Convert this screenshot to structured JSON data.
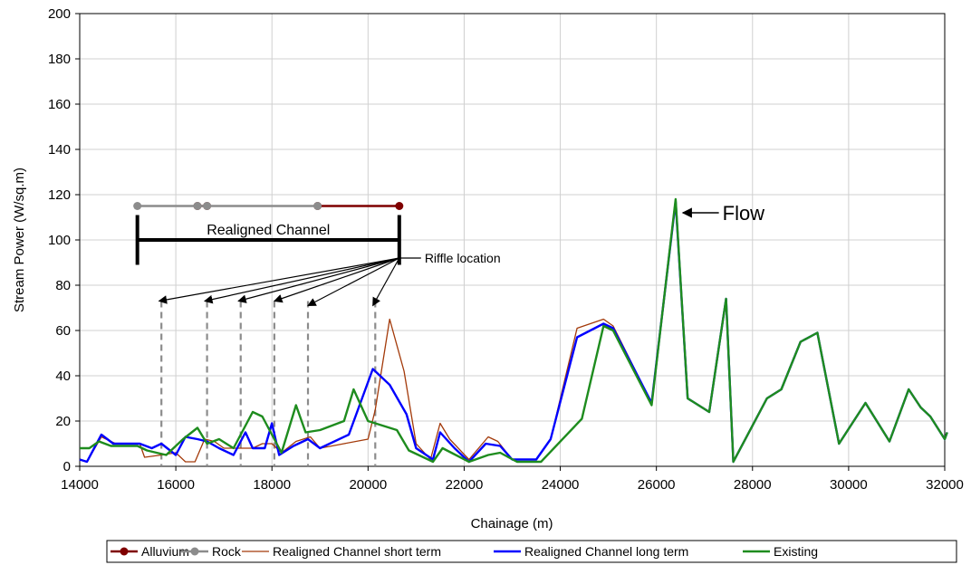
{
  "chart_data": {
    "type": "line",
    "xlabel": "Chainage (m)",
    "ylabel": "Stream Power (W/sq.m)",
    "xlim": [
      14000,
      32000
    ],
    "ylim": [
      0,
      200
    ],
    "x_ticks": [
      "14000",
      "16000",
      "18000",
      "20000",
      "22000",
      "24000",
      "26000",
      "28000",
      "30000",
      "32000"
    ],
    "y_ticks": [
      "0",
      "20",
      "40",
      "60",
      "80",
      "100",
      "120",
      "140",
      "160",
      "180",
      "200"
    ],
    "grid": true,
    "legend_position": "bottom",
    "series": [
      {
        "name": "Alluvium",
        "color": "#7f0000",
        "marker": true,
        "points": [
          [
            16450,
            115
          ],
          [
            16650,
            115
          ],
          [
            18950,
            115
          ],
          [
            20650,
            115
          ]
        ],
        "segments": [
          [
            0,
            1
          ],
          [
            2,
            3
          ]
        ]
      },
      {
        "name": "Rock",
        "color": "#8c8c8c",
        "marker": true,
        "points": [
          [
            15200,
            115
          ],
          [
            16450,
            115
          ],
          [
            16650,
            115
          ],
          [
            18950,
            115
          ]
        ],
        "segments": [
          [
            0,
            3
          ]
        ]
      },
      {
        "name": "Realigned Channel short term",
        "color": "#a33a0a",
        "width": 1.3,
        "points": [
          [
            14000,
            3
          ],
          [
            14150,
            2
          ],
          [
            14450,
            13
          ],
          [
            14750,
            10
          ],
          [
            15250,
            10
          ],
          [
            15350,
            4
          ],
          [
            15700,
            5
          ],
          [
            16000,
            6
          ],
          [
            16200,
            2
          ],
          [
            16400,
            2
          ],
          [
            16600,
            12
          ],
          [
            16800,
            11
          ],
          [
            17000,
            8
          ],
          [
            17300,
            8
          ],
          [
            17600,
            8
          ],
          [
            17800,
            10
          ],
          [
            18000,
            10
          ],
          [
            18200,
            6
          ],
          [
            18500,
            11
          ],
          [
            18800,
            13
          ],
          [
            19000,
            8
          ],
          [
            19500,
            10
          ],
          [
            20000,
            12
          ],
          [
            20150,
            25
          ],
          [
            20450,
            65
          ],
          [
            20750,
            42
          ],
          [
            21000,
            10
          ],
          [
            21300,
            3
          ],
          [
            21500,
            19
          ],
          [
            21700,
            12
          ],
          [
            22100,
            3
          ],
          [
            22500,
            13
          ],
          [
            22700,
            11
          ],
          [
            23000,
            3
          ],
          [
            23500,
            3
          ],
          [
            23800,
            12
          ],
          [
            24350,
            61
          ],
          [
            24900,
            65
          ],
          [
            25100,
            62
          ],
          [
            25900,
            28
          ],
          [
            26400,
            117
          ],
          [
            26650,
            30
          ],
          [
            27100,
            24
          ],
          [
            27450,
            74
          ],
          [
            27600,
            2
          ],
          [
            28300,
            30
          ],
          [
            28600,
            34
          ],
          [
            29000,
            55
          ],
          [
            29350,
            59
          ],
          [
            29800,
            10
          ],
          [
            30350,
            28
          ],
          [
            30850,
            11
          ],
          [
            31250,
            34
          ],
          [
            31500,
            26
          ],
          [
            31700,
            22
          ],
          [
            32000,
            12
          ],
          [
            32050,
            15
          ]
        ]
      },
      {
        "name": "Realigned Channel long term",
        "color": "#0000ff",
        "width": 2.4,
        "points": [
          [
            14000,
            3
          ],
          [
            14150,
            2
          ],
          [
            14450,
            14
          ],
          [
            14700,
            10
          ],
          [
            15250,
            10
          ],
          [
            15500,
            8
          ],
          [
            15700,
            10
          ],
          [
            16000,
            5
          ],
          [
            16200,
            13
          ],
          [
            16450,
            12
          ],
          [
            16650,
            11
          ],
          [
            16900,
            8
          ],
          [
            17200,
            5
          ],
          [
            17450,
            15
          ],
          [
            17600,
            8
          ],
          [
            17850,
            8
          ],
          [
            18000,
            19
          ],
          [
            18150,
            5
          ],
          [
            18450,
            9
          ],
          [
            18750,
            12
          ],
          [
            19000,
            8
          ],
          [
            19600,
            14
          ],
          [
            20100,
            43
          ],
          [
            20450,
            36
          ],
          [
            20800,
            23
          ],
          [
            21000,
            8
          ],
          [
            21350,
            3
          ],
          [
            21500,
            15
          ],
          [
            21800,
            8
          ],
          [
            22100,
            2
          ],
          [
            22450,
            10
          ],
          [
            22750,
            9
          ],
          [
            23000,
            3
          ],
          [
            23500,
            3
          ],
          [
            23800,
            12
          ],
          [
            24350,
            57
          ],
          [
            24900,
            63
          ],
          [
            25100,
            61
          ],
          [
            25900,
            28
          ],
          [
            26400,
            117
          ],
          [
            26650,
            30
          ],
          [
            27100,
            24
          ],
          [
            27450,
            74
          ],
          [
            27600,
            2
          ],
          [
            28300,
            30
          ],
          [
            28600,
            34
          ],
          [
            29000,
            55
          ],
          [
            29350,
            59
          ],
          [
            29800,
            10
          ],
          [
            30350,
            28
          ],
          [
            30850,
            11
          ],
          [
            31250,
            34
          ],
          [
            31500,
            26
          ],
          [
            31700,
            22
          ],
          [
            32000,
            12
          ],
          [
            32050,
            15
          ]
        ]
      },
      {
        "name": "Existing",
        "color": "#1e8c1e",
        "width": 2.4,
        "points": [
          [
            14000,
            8
          ],
          [
            14200,
            8
          ],
          [
            14400,
            11
          ],
          [
            14650,
            9
          ],
          [
            15200,
            9
          ],
          [
            15400,
            7
          ],
          [
            15800,
            5
          ],
          [
            16150,
            12
          ],
          [
            16450,
            17
          ],
          [
            16650,
            10
          ],
          [
            16900,
            12
          ],
          [
            17200,
            8
          ],
          [
            17600,
            24
          ],
          [
            17800,
            22
          ],
          [
            18200,
            6
          ],
          [
            18500,
            27
          ],
          [
            18700,
            15
          ],
          [
            19000,
            16
          ],
          [
            19500,
            20
          ],
          [
            19700,
            34
          ],
          [
            20000,
            20
          ],
          [
            20600,
            16
          ],
          [
            20850,
            7
          ],
          [
            21350,
            2
          ],
          [
            21550,
            8
          ],
          [
            22100,
            2
          ],
          [
            22500,
            5
          ],
          [
            22750,
            6
          ],
          [
            23100,
            2
          ],
          [
            23600,
            2
          ],
          [
            24450,
            21
          ],
          [
            24900,
            62
          ],
          [
            25100,
            60
          ],
          [
            25900,
            27
          ],
          [
            26400,
            118
          ],
          [
            26650,
            30
          ],
          [
            27100,
            24
          ],
          [
            27450,
            74
          ],
          [
            27600,
            2
          ],
          [
            28300,
            30
          ],
          [
            28600,
            34
          ],
          [
            29000,
            55
          ],
          [
            29350,
            59
          ],
          [
            29800,
            10
          ],
          [
            30350,
            28
          ],
          [
            30850,
            11
          ],
          [
            31250,
            34
          ],
          [
            31500,
            26
          ],
          [
            31700,
            22
          ],
          [
            32000,
            12
          ],
          [
            32050,
            15
          ]
        ]
      }
    ],
    "annotations": {
      "realigned_channel_label": "Realigned Channel",
      "realigned_channel_span": [
        15200,
        20650
      ],
      "realigned_channel_y": 100,
      "riffle_label": "Riffle location",
      "riffle_source": [
        20650,
        92
      ],
      "riffle_arrow_targets": [
        [
          15650,
          73
        ],
        [
          16600,
          73
        ],
        [
          17300,
          73
        ],
        [
          18050,
          73
        ],
        [
          18750,
          71
        ],
        [
          20100,
          71
        ]
      ],
      "riffle_line_x": [
        15700,
        16650,
        17350,
        18050,
        18750,
        20150
      ],
      "riffle_line_top": 73,
      "flow_label": "Flow",
      "flow_arrow_from": [
        27300,
        112
      ],
      "flow_arrow_to": [
        26550,
        112
      ]
    }
  }
}
